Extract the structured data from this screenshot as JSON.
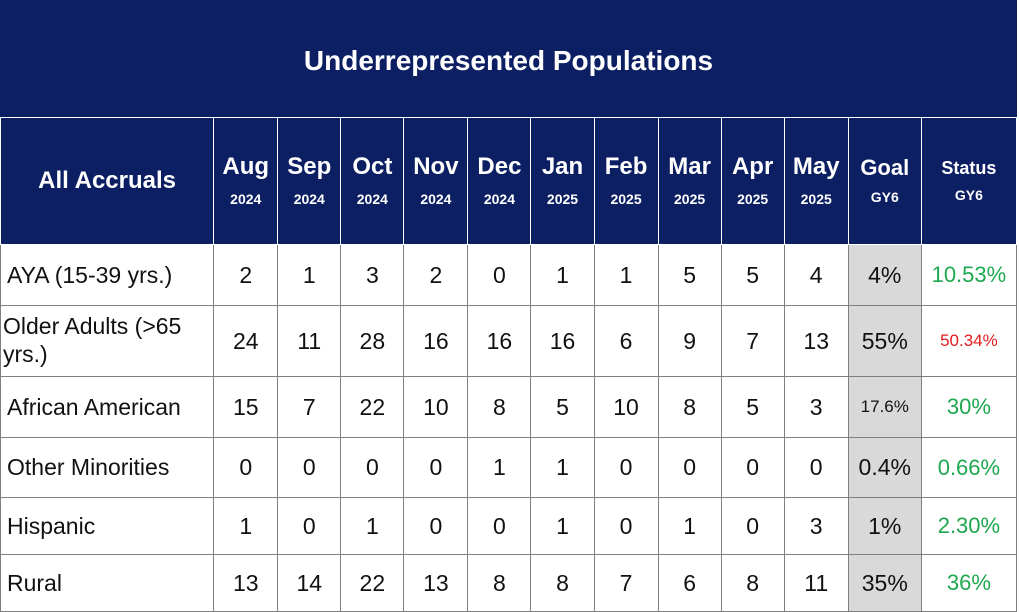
{
  "title": "Underrepresented Populations",
  "header": {
    "row_label": "All Accruals",
    "months": [
      {
        "month": "Aug",
        "year": "2024"
      },
      {
        "month": "Sep",
        "year": "2024"
      },
      {
        "month": "Oct",
        "year": "2024"
      },
      {
        "month": "Nov",
        "year": "2024"
      },
      {
        "month": "Dec",
        "year": "2024"
      },
      {
        "month": "Jan",
        "year": "2025"
      },
      {
        "month": "Feb",
        "year": "2025"
      },
      {
        "month": "Mar",
        "year": "2025"
      },
      {
        "month": "Apr",
        "year": "2025"
      },
      {
        "month": "May",
        "year": "2025"
      }
    ],
    "goal": {
      "label": "Goal",
      "sub": "GY6"
    },
    "status": {
      "label": "Status",
      "sub": "GY6"
    }
  },
  "colors": {
    "header_bg": "#0c1f63",
    "goal_bg": "#d9d9d9",
    "status_met": "#1ea84f",
    "status_unmet": "#e21b1b"
  },
  "chart_data": {
    "type": "table",
    "title": "Underrepresented Populations",
    "columns": [
      "All Accruals",
      "Aug 2024",
      "Sep 2024",
      "Oct 2024",
      "Nov 2024",
      "Dec 2024",
      "Jan 2025",
      "Feb 2025",
      "Mar 2025",
      "Apr 2025",
      "May 2025",
      "Goal GY6",
      "Status GY6"
    ],
    "rows": [
      {
        "label": "AYA (15-39 yrs.)",
        "values": [
          "2",
          "1",
          "3",
          "2",
          "0",
          "1",
          "1",
          "5",
          "5",
          "4"
        ],
        "goal": "4%",
        "status": "10.53%",
        "status_color": "green"
      },
      {
        "label": "Older Adults (>65 yrs.)",
        "values": [
          "24",
          "11",
          "28",
          "16",
          "16",
          "16",
          "6",
          "9",
          "7",
          "13"
        ],
        "goal": "55%",
        "status": "50.34%",
        "status_color": "red"
      },
      {
        "label": "African American",
        "values": [
          "15",
          "7",
          "22",
          "10",
          "8",
          "5",
          "10",
          "8",
          "5",
          "3"
        ],
        "goal": "17.6%",
        "status": "30%",
        "status_color": "green"
      },
      {
        "label": "Other Minorities",
        "values": [
          "0",
          "0",
          "0",
          "0",
          "1",
          "1",
          "0",
          "0",
          "0",
          "0"
        ],
        "goal": "0.4%",
        "status": "0.66%",
        "status_color": "green"
      },
      {
        "label": "Hispanic",
        "values": [
          "1",
          "0",
          "1",
          "0",
          "0",
          "1",
          "0",
          "1",
          "0",
          "3"
        ],
        "goal": "1%",
        "status": "2.30%",
        "status_color": "green"
      },
      {
        "label": "Rural",
        "values": [
          "13",
          "14",
          "22",
          "13",
          "8",
          "8",
          "7",
          "6",
          "8",
          "11"
        ],
        "goal": "35%",
        "status": "36%",
        "status_color": "green"
      }
    ]
  }
}
